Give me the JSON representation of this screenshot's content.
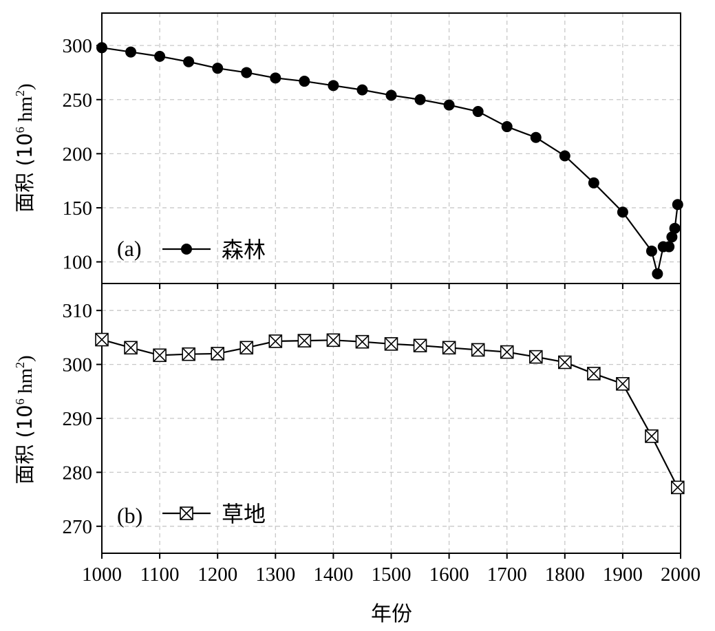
{
  "chart_data": [
    {
      "type": "line",
      "panel_label": "(a)",
      "ylabel": {
        "prefix": "面积 (10",
        "exp": "6",
        "mid": " hm",
        "exp2": "2",
        "suffix": ")"
      },
      "ylim": [
        80,
        330
      ],
      "yticks": [
        100,
        150,
        200,
        250,
        300
      ],
      "xlim": [
        1000,
        2000
      ],
      "grid": true,
      "legend_position": "lower-left",
      "series": [
        {
          "name": "森林",
          "marker": "filled-circle",
          "x": [
            1000,
            1050,
            1100,
            1150,
            1200,
            1250,
            1300,
            1350,
            1400,
            1450,
            1500,
            1550,
            1600,
            1650,
            1700,
            1750,
            1800,
            1850,
            1900,
            1950,
            1960,
            1970,
            1980,
            1985,
            1990,
            1995
          ],
          "y": [
            298,
            294,
            290,
            285,
            279,
            275,
            270,
            267,
            263,
            259,
            254,
            250,
            245,
            239,
            225,
            215,
            198,
            173,
            146,
            110,
            89,
            114,
            114,
            123,
            131,
            153
          ]
        }
      ]
    },
    {
      "type": "line",
      "panel_label": "(b)",
      "ylabel": {
        "prefix": "面积 (10",
        "exp": "6",
        "mid": " hm",
        "exp2": "2",
        "suffix": ")"
      },
      "ylim": [
        265,
        315
      ],
      "yticks": [
        270,
        280,
        290,
        300,
        310
      ],
      "xlim": [
        1000,
        2000
      ],
      "xticks": [
        1000,
        1100,
        1200,
        1300,
        1400,
        1500,
        1600,
        1700,
        1800,
        1900,
        2000
      ],
      "xlabel": "年份",
      "grid": true,
      "legend_position": "lower-left",
      "series": [
        {
          "name": "草地",
          "marker": "hourglass-box",
          "x": [
            1000,
            1050,
            1100,
            1150,
            1200,
            1250,
            1300,
            1350,
            1400,
            1450,
            1500,
            1550,
            1600,
            1650,
            1700,
            1750,
            1800,
            1850,
            1900,
            1950,
            1995
          ],
          "y": [
            304.6,
            303.1,
            301.7,
            301.9,
            302.0,
            303.1,
            304.3,
            304.4,
            304.5,
            304.2,
            303.8,
            303.5,
            303.1,
            302.7,
            302.3,
            301.4,
            300.4,
            298.3,
            296.4,
            286.7,
            277.2
          ]
        }
      ]
    }
  ]
}
